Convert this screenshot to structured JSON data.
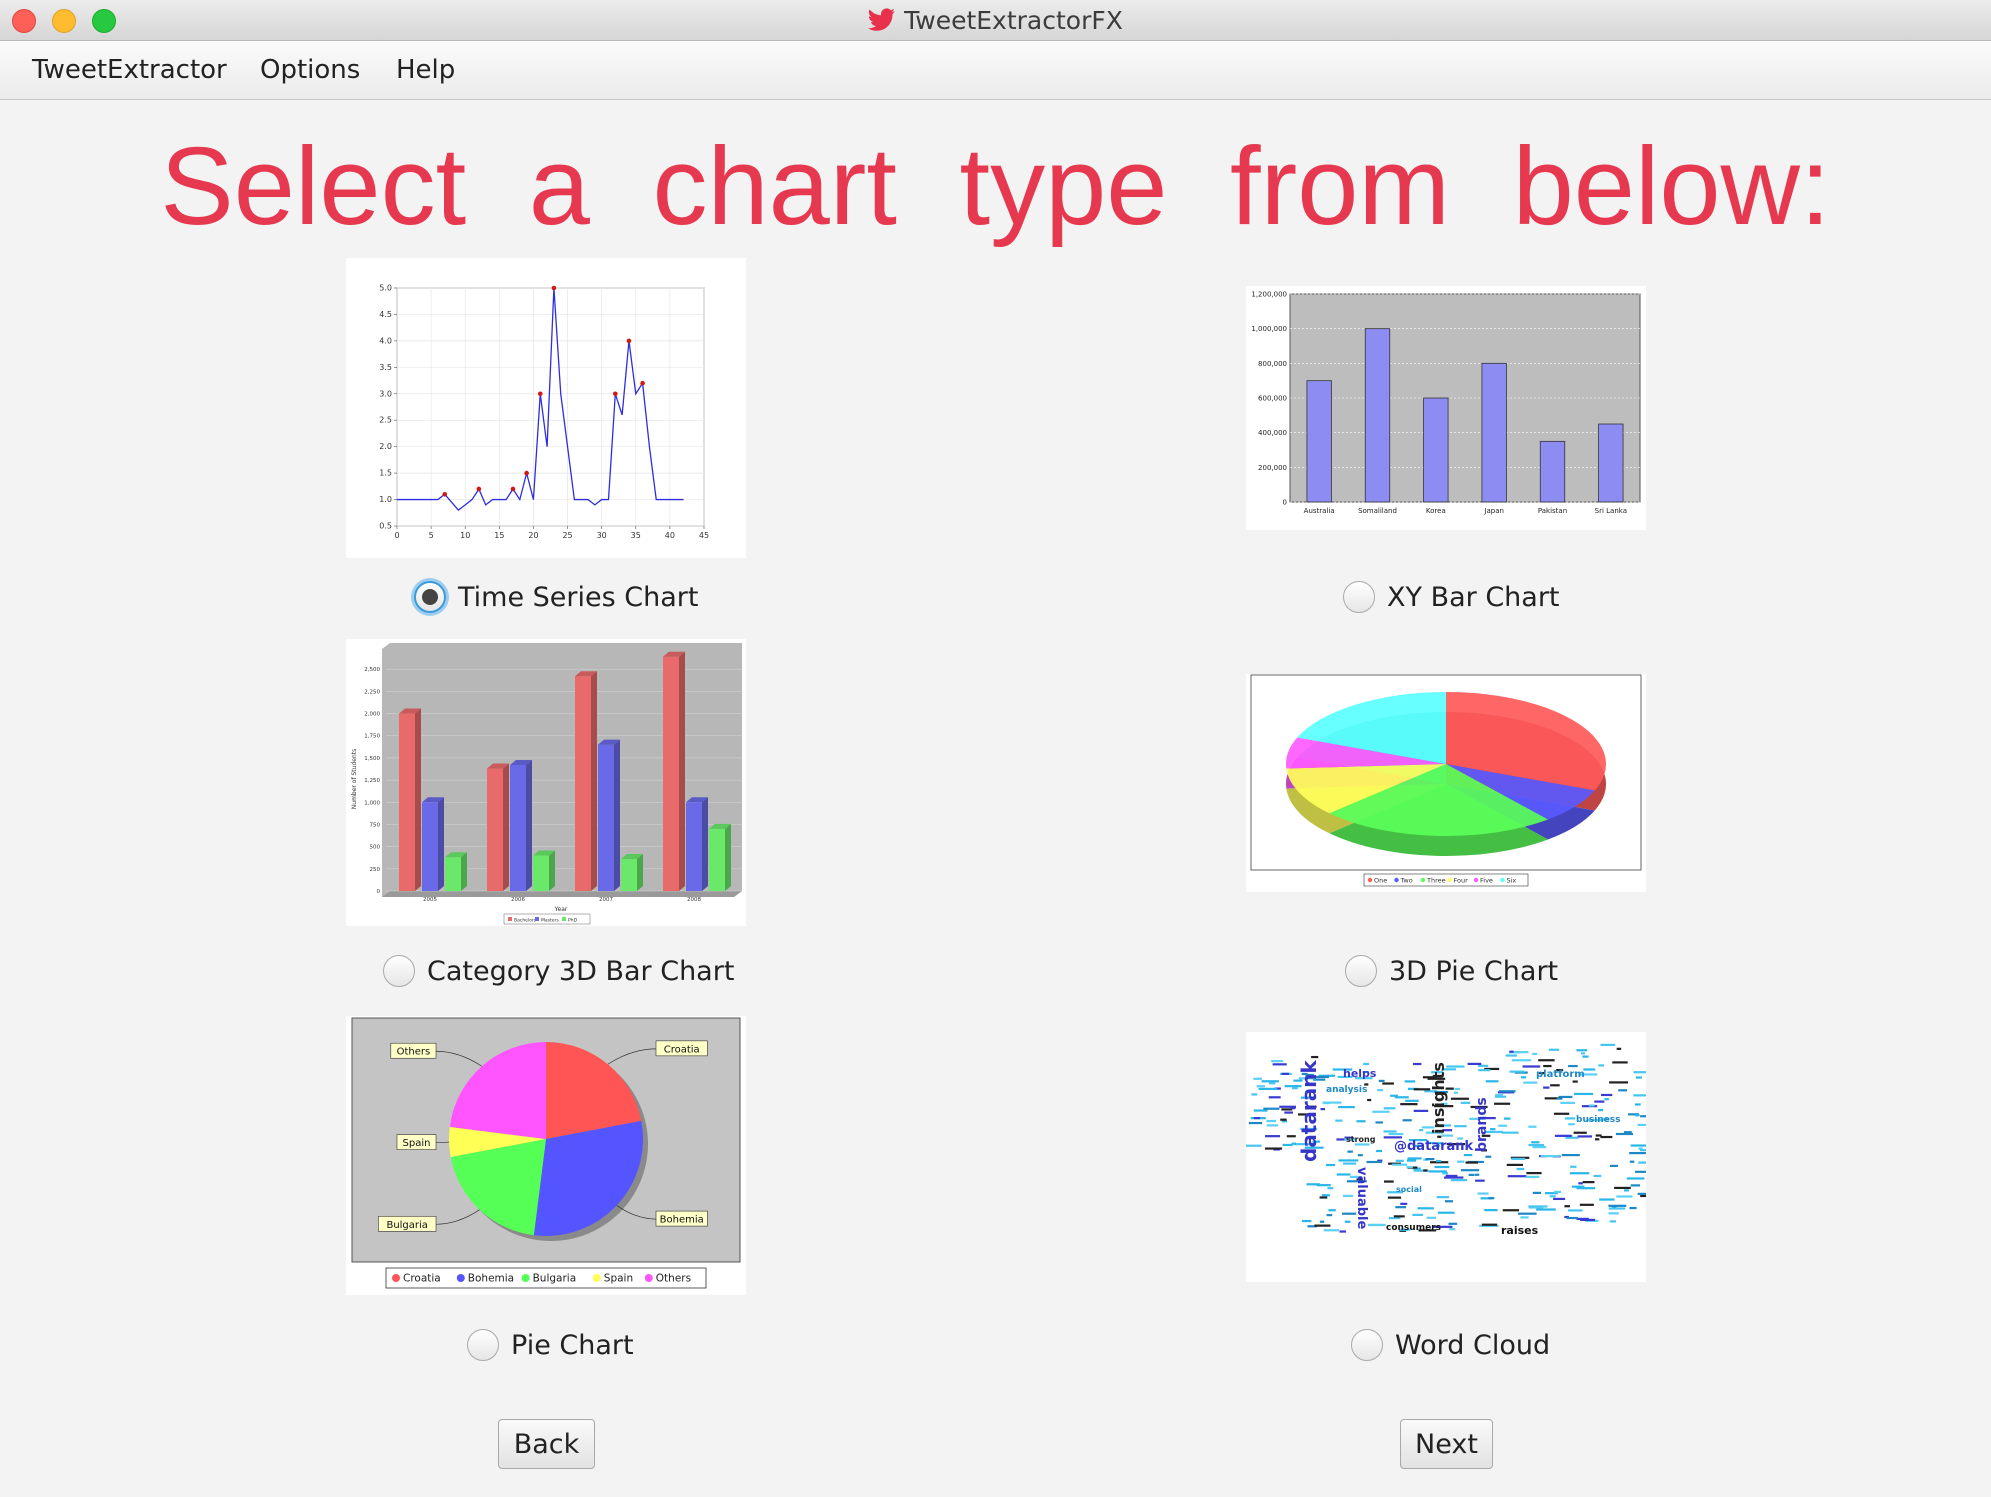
{
  "window": {
    "title": "TweetExtractorFX",
    "app_icon": "twitter-bird-icon",
    "traffic_lights": [
      "close",
      "minimize",
      "zoom"
    ]
  },
  "menubar": {
    "items": [
      {
        "label": "TweetExtractor"
      },
      {
        "label": "Options"
      },
      {
        "label": "Help"
      }
    ]
  },
  "heading": "Select a chart type from below:",
  "colors": {
    "heading": "#e63950",
    "radio_focus": "#3a9ad9"
  },
  "chart_options": [
    {
      "label": "Time Series Chart",
      "selected": true
    },
    {
      "label": "XY Bar Chart",
      "selected": false
    },
    {
      "label": "Category 3D Bar Chart",
      "selected": false
    },
    {
      "label": "3D Pie Chart",
      "selected": false
    },
    {
      "label": "Pie Chart",
      "selected": false
    },
    {
      "label": "Word Cloud",
      "selected": false
    }
  ],
  "buttons": {
    "back": "Back",
    "next": "Next"
  },
  "previews": {
    "time_series": {
      "type": "line",
      "x_ticks": [
        "0",
        "5",
        "10",
        "15",
        "20",
        "25",
        "30",
        "35",
        "40",
        "45"
      ],
      "y_ticks": [
        "0.5",
        "1.0",
        "1.5",
        "2.0",
        "2.5",
        "3.0",
        "3.5",
        "4.0",
        "4.5",
        "5.0"
      ],
      "xlim": [
        0,
        45
      ],
      "ylim": [
        0.5,
        5.0
      ],
      "points": [
        [
          0,
          1
        ],
        [
          6,
          1
        ],
        [
          7,
          1.1
        ],
        [
          8,
          0.95
        ],
        [
          9,
          0.8
        ],
        [
          10,
          0.9
        ],
        [
          11,
          1
        ],
        [
          12,
          1.2
        ],
        [
          13,
          0.9
        ],
        [
          14,
          1
        ],
        [
          15,
          1
        ],
        [
          16,
          1
        ],
        [
          17,
          1.2
        ],
        [
          18,
          1
        ],
        [
          19,
          1.5
        ],
        [
          20,
          1
        ],
        [
          21,
          3
        ],
        [
          22,
          2
        ],
        [
          23,
          5
        ],
        [
          24,
          3
        ],
        [
          25,
          2
        ],
        [
          26,
          1
        ],
        [
          27,
          1
        ],
        [
          28,
          1
        ],
        [
          29,
          0.9
        ],
        [
          30,
          1
        ],
        [
          31,
          1
        ],
        [
          32,
          3
        ],
        [
          33,
          2.6
        ],
        [
          34,
          4
        ],
        [
          35,
          3
        ],
        [
          36,
          3.2
        ],
        [
          37,
          2
        ],
        [
          38,
          1
        ],
        [
          39,
          1
        ],
        [
          40,
          1
        ],
        [
          41,
          1
        ],
        [
          42,
          1
        ]
      ],
      "markers": [
        [
          7,
          1.1
        ],
        [
          12,
          1.2
        ],
        [
          17,
          1.2
        ],
        [
          19,
          1.5
        ],
        [
          21,
          3
        ],
        [
          23,
          5
        ],
        [
          32,
          3
        ],
        [
          34,
          4
        ],
        [
          36,
          3.2
        ]
      ]
    },
    "xy_bar": {
      "type": "bar",
      "categories": [
        "Australia",
        "Somaliland",
        "Korea",
        "Japan",
        "Pakistan",
        "Sri Lanka"
      ],
      "values": [
        700000,
        1000000,
        600000,
        800000,
        350000,
        450000
      ],
      "y_ticks": [
        "1,200,000",
        "1,000,000",
        "800,000",
        "600,000",
        "400,000",
        "200,000",
        "0"
      ],
      "ylim": [
        0,
        1200000
      ]
    },
    "category_3d_bar": {
      "type": "bar",
      "categories": [
        "2005",
        "2006",
        "2007",
        "2008"
      ],
      "series": [
        {
          "name": "Bachelors",
          "color": "#e86a6a",
          "values": [
            2000,
            1380,
            2420,
            2640
          ]
        },
        {
          "name": "Masters",
          "color": "#6a6ae8",
          "values": [
            1000,
            1420,
            1650,
            1000
          ]
        },
        {
          "name": "PhD",
          "color": "#6ae86a",
          "values": [
            380,
            400,
            360,
            700
          ]
        }
      ],
      "y_ticks": [
        "2,500",
        "2,250",
        "2,000",
        "1,750",
        "1,500",
        "1,250",
        "1,000",
        "750",
        "500",
        "250",
        "0"
      ],
      "ylim": [
        0,
        2750
      ],
      "ylabel": "Number of Students",
      "xlabel": "Year"
    },
    "pie_3d": {
      "type": "pie",
      "legend": [
        "One",
        "Two",
        "Three",
        "Four",
        "Five",
        "Six"
      ],
      "colors": [
        "#ff5a5a",
        "#5a5aff",
        "#5aff5a",
        "#ffff5a",
        "#ff5aff",
        "#5affff"
      ],
      "values": [
        31,
        8,
        24,
        11,
        7,
        19
      ]
    },
    "pie": {
      "type": "pie",
      "labels": [
        "Croatia",
        "Bohemia",
        "Bulgaria",
        "Spain",
        "Others"
      ],
      "colors": [
        "#ff5555",
        "#5555ff",
        "#55ff55",
        "#ffff55",
        "#ff55ff"
      ],
      "values": [
        22,
        30,
        20,
        5,
        23
      ]
    },
    "word_cloud": {
      "words": [
        "datarank",
        "insights",
        "brands",
        "@datarank",
        "valuable",
        "helps",
        "raises",
        "consumers",
        "social",
        "platform",
        "analysis",
        "strong",
        "business"
      ]
    }
  }
}
